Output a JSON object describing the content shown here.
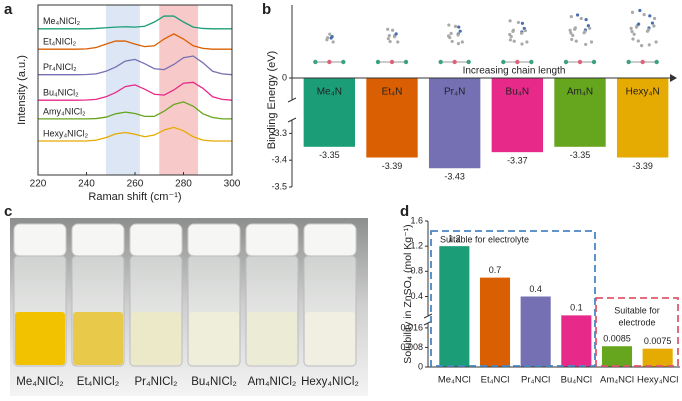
{
  "panel_labels": [
    "a",
    "b",
    "c",
    "d"
  ],
  "chart_data": [
    {
      "type": "line",
      "xlabel": "Raman shift (cm⁻¹)",
      "ylabel": "Intensity (a.u.)",
      "x": [
        220,
        224,
        228,
        232,
        236,
        240,
        244,
        248,
        252,
        256,
        260,
        264,
        268,
        272,
        276,
        280,
        284,
        288,
        292,
        296,
        300
      ],
      "xlim": [
        220,
        300
      ],
      "xticks": [
        220,
        240,
        260,
        280,
        300
      ],
      "ylim": [
        0,
        10
      ],
      "shaded_regions": [
        {
          "xlim": [
            248,
            262
          ],
          "color": "#dde6f4"
        },
        {
          "xlim": [
            270,
            286
          ],
          "color": "#f8c9c9"
        }
      ],
      "series": [
        {
          "name": "Me₄NICl₂",
          "color": "#1b9e77",
          "values": [
            8.6,
            8.6,
            8.6,
            8.6,
            8.6,
            8.6,
            8.62,
            8.66,
            8.7,
            8.72,
            8.7,
            8.75,
            9.0,
            9.35,
            9.35,
            9.0,
            8.7,
            8.62,
            8.6,
            8.6,
            8.6
          ]
        },
        {
          "name": "Et₄NICl₂",
          "color": "#d95f02",
          "values": [
            7.4,
            7.4,
            7.4,
            7.4,
            7.4,
            7.42,
            7.5,
            7.7,
            7.88,
            7.88,
            7.7,
            7.55,
            7.6,
            8.0,
            8.3,
            8.0,
            7.6,
            7.45,
            7.4,
            7.4,
            7.4
          ]
        },
        {
          "name": "Pr₄NICl₂",
          "color": "#7570b3",
          "values": [
            5.9,
            5.9,
            5.9,
            5.9,
            5.9,
            5.91,
            5.95,
            6.1,
            6.35,
            6.7,
            6.8,
            6.55,
            6.25,
            6.2,
            6.5,
            6.9,
            7.0,
            6.6,
            6.1,
            5.95,
            5.9
          ]
        },
        {
          "name": "Bu₄NICl₂",
          "color": "#e7298a",
          "values": [
            4.4,
            4.4,
            4.4,
            4.4,
            4.4,
            4.41,
            4.45,
            4.6,
            4.85,
            5.2,
            5.3,
            5.05,
            4.75,
            4.7,
            5.0,
            5.4,
            5.45,
            5.1,
            4.6,
            4.45,
            4.4
          ]
        },
        {
          "name": "Amy₄NICl₂",
          "color": "#66a61e",
          "values": [
            3.3,
            3.3,
            3.3,
            3.3,
            3.3,
            3.3,
            3.32,
            3.4,
            3.6,
            3.7,
            3.62,
            3.45,
            3.45,
            3.75,
            4.15,
            4.3,
            4.05,
            3.6,
            3.38,
            3.3,
            3.3
          ]
        },
        {
          "name": "Hexy₄NICl₂",
          "color": "#e6ab02",
          "values": [
            2.0,
            2.0,
            2.0,
            2.0,
            2.0,
            2.0,
            2.05,
            2.2,
            2.42,
            2.5,
            2.4,
            2.25,
            2.35,
            2.65,
            2.8,
            2.6,
            2.25,
            2.05,
            2.0,
            2.0,
            2.0
          ]
        }
      ]
    },
    {
      "type": "bar",
      "ylabel": "Binding Energy (eV)",
      "annotation": "Increasing chain length",
      "categories": [
        "Me₄N",
        "Et₄N",
        "Pr₄N",
        "Bu₄N",
        "Am₄N",
        "Hexy₄N"
      ],
      "values": [
        -3.35,
        -3.39,
        -3.43,
        -3.37,
        -3.35,
        -3.39
      ],
      "colors": [
        "#1b9e77",
        "#d95f02",
        "#7570b3",
        "#e7298a",
        "#66a61e",
        "#e6ab02"
      ],
      "ylim": [
        -3.5,
        0
      ],
      "yticks": [
        0,
        -3.3,
        -3.4,
        -3.5
      ],
      "ybreak": [
        -3.25,
        -0.25
      ]
    },
    {
      "type": "bar",
      "ylabel": "Solubility in ZnSO₄ (mol Kg⁻¹)",
      "categories": [
        "Me₄NCl",
        "Et₄NCl",
        "Pr₄NCl",
        "Bu₄NCl",
        "Am₄NCl",
        "Hexy₄NCl"
      ],
      "values": [
        1.2,
        0.7,
        0.4,
        0.1,
        0.0085,
        0.0075
      ],
      "colors": [
        "#1b9e77",
        "#d95f02",
        "#7570b3",
        "#e7298a",
        "#66a61e",
        "#e6ab02"
      ],
      "ylim": [
        0,
        1.6
      ],
      "yticks": [
        0,
        0.008,
        0.016,
        0.4,
        0.8,
        1.2,
        1.6
      ],
      "ybreak": [
        0.018,
        0.09
      ],
      "annotations": [
        {
          "lines": [
            "Suitable for electrolyte"
          ],
          "color": "#4a86c5"
        },
        {
          "lines": [
            "Suitable for",
            "electrode"
          ],
          "color": "#e05a6a"
        }
      ]
    }
  ],
  "photo": {
    "labels": [
      "Me₄NICl₂",
      "Et₄NICl₂",
      "Pr₄NICl₂",
      "Bu₄NICl₂",
      "Am₄NICl₂",
      "Hexy₄NICl₂"
    ],
    "colors": [
      "#1b9e77",
      "#d95f02",
      "#7570b3",
      "#e7298a",
      "#66a61e",
      "#e6ab02"
    ]
  }
}
